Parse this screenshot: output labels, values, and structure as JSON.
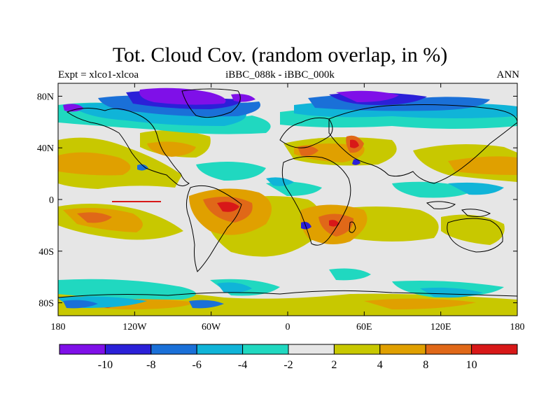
{
  "title": "Tot. Cloud Cov. (random overlap, in %)",
  "left_string": "Expt = xlco1-xlcoa",
  "center_string": "iBBC_088k - iBBC_000k",
  "right_string": "ANN",
  "lat_ticks": [
    {
      "label": "80N",
      "lat": 80
    },
    {
      "label": "40N",
      "lat": 40
    },
    {
      "label": "0",
      "lat": 0
    },
    {
      "label": "40S",
      "lat": -40
    },
    {
      "label": "80S",
      "lat": -80
    }
  ],
  "lon_ticks": [
    {
      "label": "180",
      "lon": -180
    },
    {
      "label": "120W",
      "lon": -120
    },
    {
      "label": "60W",
      "lon": -60
    },
    {
      "label": "0",
      "lon": 0
    },
    {
      "label": "60E",
      "lon": 60
    },
    {
      "label": "120E",
      "lon": 120
    },
    {
      "label": "180",
      "lon": 180
    }
  ],
  "colorbar": {
    "colors": [
      "#7f10e8",
      "#2b20d8",
      "#1a70d8",
      "#10b4d8",
      "#20d8c0",
      "#e6e6e6",
      "#c8c800",
      "#e0a000",
      "#e06818",
      "#d81818"
    ],
    "labels": [
      {
        "text": "-10",
        "index": 1
      },
      {
        "text": "-8",
        "index": 2
      },
      {
        "text": "-6",
        "index": 3
      },
      {
        "text": "-4",
        "index": 4
      },
      {
        "text": "-2",
        "index": 5
      },
      {
        "text": "2",
        "index": 6
      },
      {
        "text": "4",
        "index": 7
      },
      {
        "text": "8",
        "index": 8
      },
      {
        "text": "10",
        "index": 9
      }
    ]
  },
  "map_background_color": "#e6e6e6"
}
